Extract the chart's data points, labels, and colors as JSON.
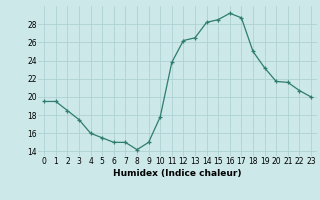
{
  "x": [
    0,
    1,
    2,
    3,
    4,
    5,
    6,
    7,
    8,
    9,
    10,
    11,
    12,
    13,
    14,
    15,
    16,
    17,
    18,
    19,
    20,
    21,
    22,
    23
  ],
  "y": [
    19.5,
    19.5,
    18.5,
    17.5,
    16.0,
    15.5,
    15.0,
    15.0,
    14.2,
    15.0,
    17.8,
    23.8,
    26.2,
    26.5,
    28.2,
    28.5,
    29.2,
    28.7,
    25.0,
    23.2,
    21.7,
    21.6,
    20.7,
    20.0
  ],
  "xlabel": "Humidex (Indice chaleur)",
  "ylim": [
    13.5,
    30.0
  ],
  "yticks": [
    14,
    16,
    18,
    20,
    22,
    24,
    26,
    28
  ],
  "xlim": [
    -0.5,
    23.5
  ],
  "line_color": "#2e7d6e",
  "marker": "+",
  "bg_color": "#cce8e8",
  "grid_color": "#aacece",
  "label_fontsize": 6.5,
  "tick_fontsize": 5.5
}
